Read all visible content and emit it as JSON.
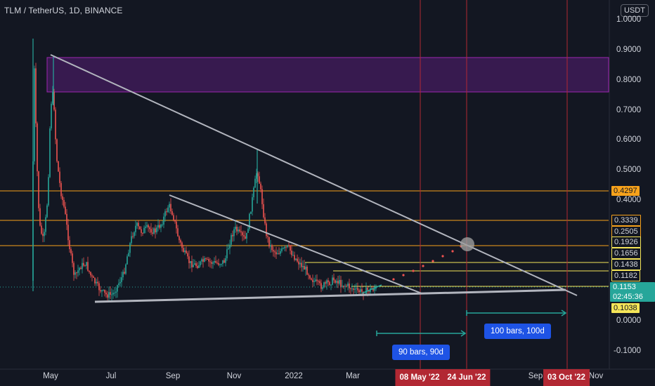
{
  "chart_title": "TLM / TetherUS, 1D, BINANCE",
  "currency_button": "USDT",
  "y_axis_ticks": [
    {
      "label": "1.0000",
      "value": 1.0
    },
    {
      "label": "0.9000",
      "value": 0.9
    },
    {
      "label": "0.8000",
      "value": 0.8
    },
    {
      "label": "0.7000",
      "value": 0.7
    },
    {
      "label": "0.6000",
      "value": 0.6
    },
    {
      "label": "0.5000",
      "value": 0.5
    },
    {
      "label": "0.4000",
      "value": 0.4
    },
    {
      "label": "0.0000",
      "value": 0.0
    },
    {
      "label": "-0.1000",
      "value": -0.1
    }
  ],
  "x_axis_ticks": [
    "May",
    "Jul",
    "Sep",
    "Nov",
    "2022",
    "Mar",
    "Sep",
    "Nov"
  ],
  "price_levels": [
    {
      "label": "0.4297",
      "value": 0.4297,
      "color": "#f7a21b"
    },
    {
      "label": "0.3339",
      "value": 0.3339,
      "color": "#f7a21b"
    },
    {
      "label": "0.2505",
      "value": 0.2505,
      "color": "#f7a21b"
    },
    {
      "label": "0.1926",
      "value": 0.1926,
      "color": "#f7a21b"
    },
    {
      "label": "0.1656",
      "value": 0.1656,
      "color": "#f5e558"
    },
    {
      "label": "0.1438",
      "value": 0.1438,
      "color": "#f5e558"
    },
    {
      "label": "0.1182",
      "value": 0.1182,
      "color": "#f5e558"
    },
    {
      "label": "0.1038",
      "value": 0.1038,
      "color": "#f5e558"
    }
  ],
  "current_price": {
    "value": "0.1153",
    "countdown": "02:45:36",
    "color": "#26a69a"
  },
  "date_markers": [
    "08 May '22",
    "24 Jun '22",
    "03 Oct '22"
  ],
  "bar_ranges": [
    {
      "label": "90 bars, 90d"
    },
    {
      "label": "100 bars, 100d"
    }
  ],
  "colors": {
    "background": "#131722",
    "zone_fill": "#7b1fa2",
    "trendline": "#b2b5be",
    "vertical_markers": "#b22833",
    "projection_dots": "#ef5350",
    "bull_candle": "#26a69a",
    "bear_candle": "#ef5350"
  }
}
